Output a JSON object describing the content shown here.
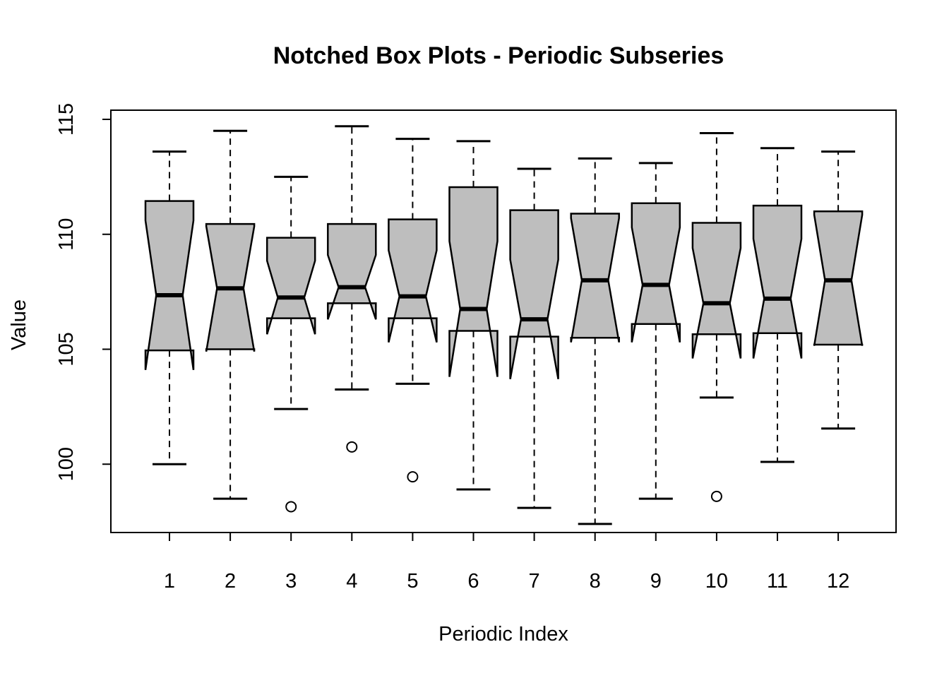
{
  "figure": {
    "background": "#ffffff"
  },
  "chart_data": {
    "type": "boxplot",
    "notched": true,
    "title": "Notched Box Plots - Periodic Subseries",
    "xlabel": "Periodic Index",
    "ylabel": "Value",
    "categories": [
      "1",
      "2",
      "3",
      "4",
      "5",
      "6",
      "7",
      "8",
      "9",
      "10",
      "11",
      "12"
    ],
    "y_ticks": [
      100,
      105,
      110,
      115
    ],
    "ylim": [
      97.0,
      115.4
    ],
    "grid": false,
    "legend": "none",
    "box_fill": "#bebebe",
    "line_color": "#000000",
    "series": [
      {
        "label": "1",
        "whisker_low": 100.0,
        "q1": 104.95,
        "median": 107.35,
        "q3": 111.45,
        "whisker_high": 113.6,
        "notch_low": 104.1,
        "notch_high": 110.6,
        "outliers": []
      },
      {
        "label": "2",
        "whisker_low": 98.5,
        "q1": 105.0,
        "median": 107.65,
        "q3": 110.45,
        "whisker_high": 114.5,
        "notch_low": 104.9,
        "notch_high": 110.35,
        "outliers": []
      },
      {
        "label": "3",
        "whisker_low": 102.4,
        "q1": 106.35,
        "median": 107.25,
        "q3": 109.85,
        "whisker_high": 112.5,
        "notch_low": 105.65,
        "notch_high": 108.85,
        "outliers": [
          98.15
        ]
      },
      {
        "label": "4",
        "whisker_low": 103.25,
        "q1": 107.0,
        "median": 107.7,
        "q3": 110.45,
        "whisker_high": 114.7,
        "notch_low": 106.3,
        "notch_high": 109.1,
        "outliers": [
          100.75
        ]
      },
      {
        "label": "5",
        "whisker_low": 103.5,
        "q1": 106.35,
        "median": 107.3,
        "q3": 110.65,
        "whisker_high": 114.15,
        "notch_low": 105.3,
        "notch_high": 109.3,
        "outliers": [
          99.45
        ]
      },
      {
        "label": "6",
        "whisker_low": 98.9,
        "q1": 105.8,
        "median": 106.75,
        "q3": 112.05,
        "whisker_high": 114.05,
        "notch_low": 103.8,
        "notch_high": 109.7,
        "outliers": []
      },
      {
        "label": "7",
        "whisker_low": 98.1,
        "q1": 105.55,
        "median": 106.3,
        "q3": 111.05,
        "whisker_high": 112.85,
        "notch_low": 103.7,
        "notch_high": 108.9,
        "outliers": []
      },
      {
        "label": "8",
        "whisker_low": 97.4,
        "q1": 105.5,
        "median": 108.0,
        "q3": 110.9,
        "whisker_high": 113.3,
        "notch_low": 105.3,
        "notch_high": 110.7,
        "outliers": []
      },
      {
        "label": "9",
        "whisker_low": 98.5,
        "q1": 106.1,
        "median": 107.8,
        "q3": 111.35,
        "whisker_high": 113.1,
        "notch_low": 105.3,
        "notch_high": 110.3,
        "outliers": []
      },
      {
        "label": "10",
        "whisker_low": 102.9,
        "q1": 105.65,
        "median": 107.0,
        "q3": 110.5,
        "whisker_high": 114.4,
        "notch_low": 104.6,
        "notch_high": 109.4,
        "outliers": [
          98.6
        ]
      },
      {
        "label": "11",
        "whisker_low": 100.1,
        "q1": 105.7,
        "median": 107.2,
        "q3": 111.25,
        "whisker_high": 113.75,
        "notch_low": 104.6,
        "notch_high": 109.8,
        "outliers": []
      },
      {
        "label": "12",
        "whisker_low": 101.55,
        "q1": 105.2,
        "median": 108.0,
        "q3": 111.0,
        "whisker_high": 113.6,
        "notch_low": 105.15,
        "notch_high": 110.85,
        "outliers": []
      }
    ]
  }
}
